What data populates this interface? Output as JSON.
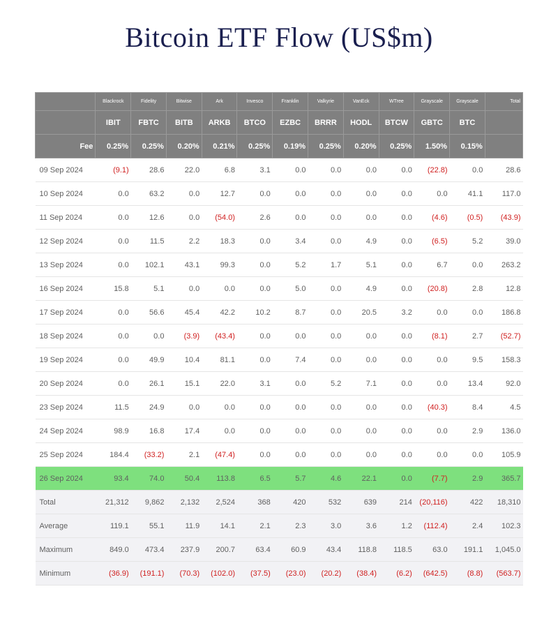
{
  "title": "Bitcoin ETF Flow (US$m)",
  "colors": {
    "title": "#1a1f4f",
    "header_bg": "#808080",
    "header_fg": "#ffffff",
    "row_border": "#e5e5e5",
    "negative": "#d02020",
    "highlight_bg": "#7ee07e",
    "summary_bg": "#f2f2f5",
    "text": "#606060"
  },
  "header": {
    "fee_label": "Fee",
    "total_label": "Total",
    "issuers": [
      "Blackrock",
      "Fidelity",
      "Bitwise",
      "Ark",
      "Invesco",
      "Franklin",
      "Valkyrie",
      "VanEck",
      "WTree",
      "Grayscale",
      "Grayscale"
    ],
    "tickers": [
      "IBIT",
      "FBTC",
      "BITB",
      "ARKB",
      "BTCO",
      "EZBC",
      "BRRR",
      "HODL",
      "BTCW",
      "GBTC",
      "BTC"
    ],
    "fees": [
      "0.25%",
      "0.25%",
      "0.20%",
      "0.21%",
      "0.25%",
      "0.19%",
      "0.25%",
      "0.20%",
      "0.25%",
      "1.50%",
      "0.15%"
    ]
  },
  "rows": [
    {
      "label": "09 Sep 2024",
      "cells": [
        "(9.1)",
        "28.6",
        "22.0",
        "6.8",
        "3.1",
        "0.0",
        "0.0",
        "0.0",
        "0.0",
        "(22.8)",
        "0.0"
      ],
      "total": "28.6"
    },
    {
      "label": "10 Sep 2024",
      "cells": [
        "0.0",
        "63.2",
        "0.0",
        "12.7",
        "0.0",
        "0.0",
        "0.0",
        "0.0",
        "0.0",
        "0.0",
        "41.1"
      ],
      "total": "117.0"
    },
    {
      "label": "11 Sep 2024",
      "cells": [
        "0.0",
        "12.6",
        "0.0",
        "(54.0)",
        "2.6",
        "0.0",
        "0.0",
        "0.0",
        "0.0",
        "(4.6)",
        "(0.5)"
      ],
      "total": "(43.9)"
    },
    {
      "label": "12 Sep 2024",
      "cells": [
        "0.0",
        "11.5",
        "2.2",
        "18.3",
        "0.0",
        "3.4",
        "0.0",
        "4.9",
        "0.0",
        "(6.5)",
        "5.2"
      ],
      "total": "39.0"
    },
    {
      "label": "13 Sep 2024",
      "cells": [
        "0.0",
        "102.1",
        "43.1",
        "99.3",
        "0.0",
        "5.2",
        "1.7",
        "5.1",
        "0.0",
        "6.7",
        "0.0"
      ],
      "total": "263.2"
    },
    {
      "label": "16 Sep 2024",
      "cells": [
        "15.8",
        "5.1",
        "0.0",
        "0.0",
        "0.0",
        "5.0",
        "0.0",
        "4.9",
        "0.0",
        "(20.8)",
        "2.8"
      ],
      "total": "12.8"
    },
    {
      "label": "17 Sep 2024",
      "cells": [
        "0.0",
        "56.6",
        "45.4",
        "42.2",
        "10.2",
        "8.7",
        "0.0",
        "20.5",
        "3.2",
        "0.0",
        "0.0"
      ],
      "total": "186.8"
    },
    {
      "label": "18 Sep 2024",
      "cells": [
        "0.0",
        "0.0",
        "(3.9)",
        "(43.4)",
        "0.0",
        "0.0",
        "0.0",
        "0.0",
        "0.0",
        "(8.1)",
        "2.7"
      ],
      "total": "(52.7)"
    },
    {
      "label": "19 Sep 2024",
      "cells": [
        "0.0",
        "49.9",
        "10.4",
        "81.1",
        "0.0",
        "7.4",
        "0.0",
        "0.0",
        "0.0",
        "0.0",
        "9.5"
      ],
      "total": "158.3"
    },
    {
      "label": "20 Sep 2024",
      "cells": [
        "0.0",
        "26.1",
        "15.1",
        "22.0",
        "3.1",
        "0.0",
        "5.2",
        "7.1",
        "0.0",
        "0.0",
        "13.4"
      ],
      "total": "92.0"
    },
    {
      "label": "23 Sep 2024",
      "cells": [
        "11.5",
        "24.9",
        "0.0",
        "0.0",
        "0.0",
        "0.0",
        "0.0",
        "0.0",
        "0.0",
        "(40.3)",
        "8.4"
      ],
      "total": "4.5"
    },
    {
      "label": "24 Sep 2024",
      "cells": [
        "98.9",
        "16.8",
        "17.4",
        "0.0",
        "0.0",
        "0.0",
        "0.0",
        "0.0",
        "0.0",
        "0.0",
        "2.9"
      ],
      "total": "136.0"
    },
    {
      "label": "25 Sep 2024",
      "cells": [
        "184.4",
        "(33.2)",
        "2.1",
        "(47.4)",
        "0.0",
        "0.0",
        "0.0",
        "0.0",
        "0.0",
        "0.0",
        "0.0"
      ],
      "total": "105.9"
    },
    {
      "label": "26 Sep 2024",
      "highlight": true,
      "cells": [
        "93.4",
        "74.0",
        "50.4",
        "113.8",
        "6.5",
        "5.7",
        "4.6",
        "22.1",
        "0.0",
        "(7.7)",
        "2.9"
      ],
      "total": "365.7"
    },
    {
      "label": "Total",
      "summary": true,
      "cells": [
        "21,312",
        "9,862",
        "2,132",
        "2,524",
        "368",
        "420",
        "532",
        "639",
        "214",
        "(20,116)",
        "422"
      ],
      "total": "18,310"
    },
    {
      "label": "Average",
      "summary": true,
      "cells": [
        "119.1",
        "55.1",
        "11.9",
        "14.1",
        "2.1",
        "2.3",
        "3.0",
        "3.6",
        "1.2",
        "(112.4)",
        "2.4"
      ],
      "total": "102.3"
    },
    {
      "label": "Maximum",
      "summary": true,
      "cells": [
        "849.0",
        "473.4",
        "237.9",
        "200.7",
        "63.4",
        "60.9",
        "43.4",
        "118.8",
        "118.5",
        "63.0",
        "191.1"
      ],
      "total": "1,045.0"
    },
    {
      "label": "Minimum",
      "summary": true,
      "cells": [
        "(36.9)",
        "(191.1)",
        "(70.3)",
        "(102.0)",
        "(37.5)",
        "(23.0)",
        "(20.2)",
        "(38.4)",
        "(6.2)",
        "(642.5)",
        "(8.8)"
      ],
      "total": "(563.7)"
    }
  ]
}
